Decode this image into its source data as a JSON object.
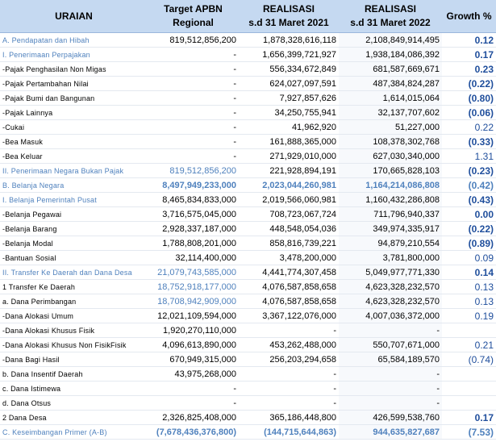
{
  "table": {
    "header": [
      [
        "URAIAN"
      ],
      [
        "Target APBN",
        "Regional"
      ],
      [
        "REALISASI",
        "s.d 31 Maret 2021"
      ],
      [
        "REALISASI",
        "s.d 31 Maret 2022"
      ],
      [
        "Growth %"
      ]
    ],
    "rows": [
      [
        "A. Pendapatan dan Hibah",
        "819,512,856,200",
        "1,878,328,616,118",
        "2,108,849,914,495",
        "0.12"
      ],
      [
        "I. Penerimaan Perpajakan",
        "-",
        "1,656,399,721,927",
        "1,938,184,086,392",
        "0.17"
      ],
      [
        "-Pajak Penghasilan Non Migas",
        "-",
        "556,334,672,849",
        "681,587,669,671",
        "0.23"
      ],
      [
        "-Pajak Pertambahan Nilai",
        "-",
        "624,027,097,591",
        "487,384,824,287",
        "(0.22)"
      ],
      [
        "-Pajak Bumi dan Bangunan",
        "-",
        "7,927,857,626",
        "1,614,015,064",
        "(0.80)"
      ],
      [
        "-Pajak Lainnya",
        "-",
        "34,250,755,941",
        "32,137,707,602",
        "(0.06)"
      ],
      [
        "-Cukai",
        "-",
        "41,962,920",
        "51,227,000",
        "0.22"
      ],
      [
        "-Bea Masuk",
        "-",
        "161,888,365,000",
        "108,378,302,768",
        "(0.33)"
      ],
      [
        "-Bea Keluar",
        "-",
        "271,929,010,000",
        "627,030,340,000",
        "1.31"
      ],
      [
        "II. Penerimaan Negara Bukan Pajak",
        "819,512,856,200",
        "221,928,894,191",
        "170,665,828,103",
        "(0.23)"
      ],
      [
        "B. Belanja Negara",
        "8,497,949,233,000",
        "2,023,044,260,981",
        "1,164,214,086,808",
        "(0.42)"
      ],
      [
        "I. Belanja Pemerintah Pusat",
        "8,465,834,833,000",
        "2,019,566,060,981",
        "1,160,432,286,808",
        "(0.43)"
      ],
      [
        "-Belanja Pegawai",
        "3,716,575,045,000",
        "708,723,067,724",
        "711,796,940,337",
        "0.00"
      ],
      [
        "-Belanja Barang",
        "2,928,337,187,000",
        "448,548,054,036",
        "349,974,335,917",
        "(0.22)"
      ],
      [
        "-Belanja Modal",
        "1,788,808,201,000",
        "858,816,739,221",
        "94,879,210,554",
        "(0.89)"
      ],
      [
        "-Bantuan Sosial",
        "32,114,400,000",
        "3,478,200,000",
        "3,781,800,000",
        "0.09"
      ],
      [
        "II. Transfer Ke Daerah dan Dana Desa",
        "21,079,743,585,000",
        "4,441,774,307,458",
        "5,049,977,771,330",
        "0.14"
      ],
      [
        "1 Transfer Ke Daerah",
        "18,752,918,177,000",
        "4,076,587,858,658",
        "4,623,328,232,570",
        "0.13"
      ],
      [
        "a. Dana Perimbangan",
        "18,708,942,909,000",
        "4,076,587,858,658",
        "4,623,328,232,570",
        "0.13"
      ],
      [
        "-Dana Alokasi Umum",
        "12,021,109,594,000",
        "3,367,122,076,000",
        "4,007,036,372,000",
        "0.19"
      ],
      [
        "-Dana Alokasi Khusus Fisik",
        "1,920,270,110,000",
        "-",
        "-",
        null
      ],
      [
        "-Dana Alokasi Khusus Non FisikFisik",
        "4,096,613,890,000",
        "453,262,488,000",
        "550,707,671,000",
        "0.21"
      ],
      [
        "-Dana Bagi Hasil",
        "670,949,315,000",
        "256,203,294,658",
        "65,584,189,570",
        "(0.74)"
      ],
      [
        "b. Dana Insentif Daerah",
        "43,975,268,000",
        "-",
        "-",
        null
      ],
      [
        "c. Dana Istimewa",
        "-",
        "-",
        "-",
        null
      ],
      [
        "d. Dana Otsus",
        "-",
        "-",
        "-",
        null
      ],
      [
        "2 Dana Desa",
        "2,326,825,408,000",
        "365,186,448,800",
        "426,599,538,760",
        "0.17"
      ],
      [
        "C. Keseimbangan Primer (A-B)",
        "(7,678,436,376,800)",
        "(144,715,644,863)",
        "944,635,827,687",
        "(7.53)"
      ]
    ]
  }
}
